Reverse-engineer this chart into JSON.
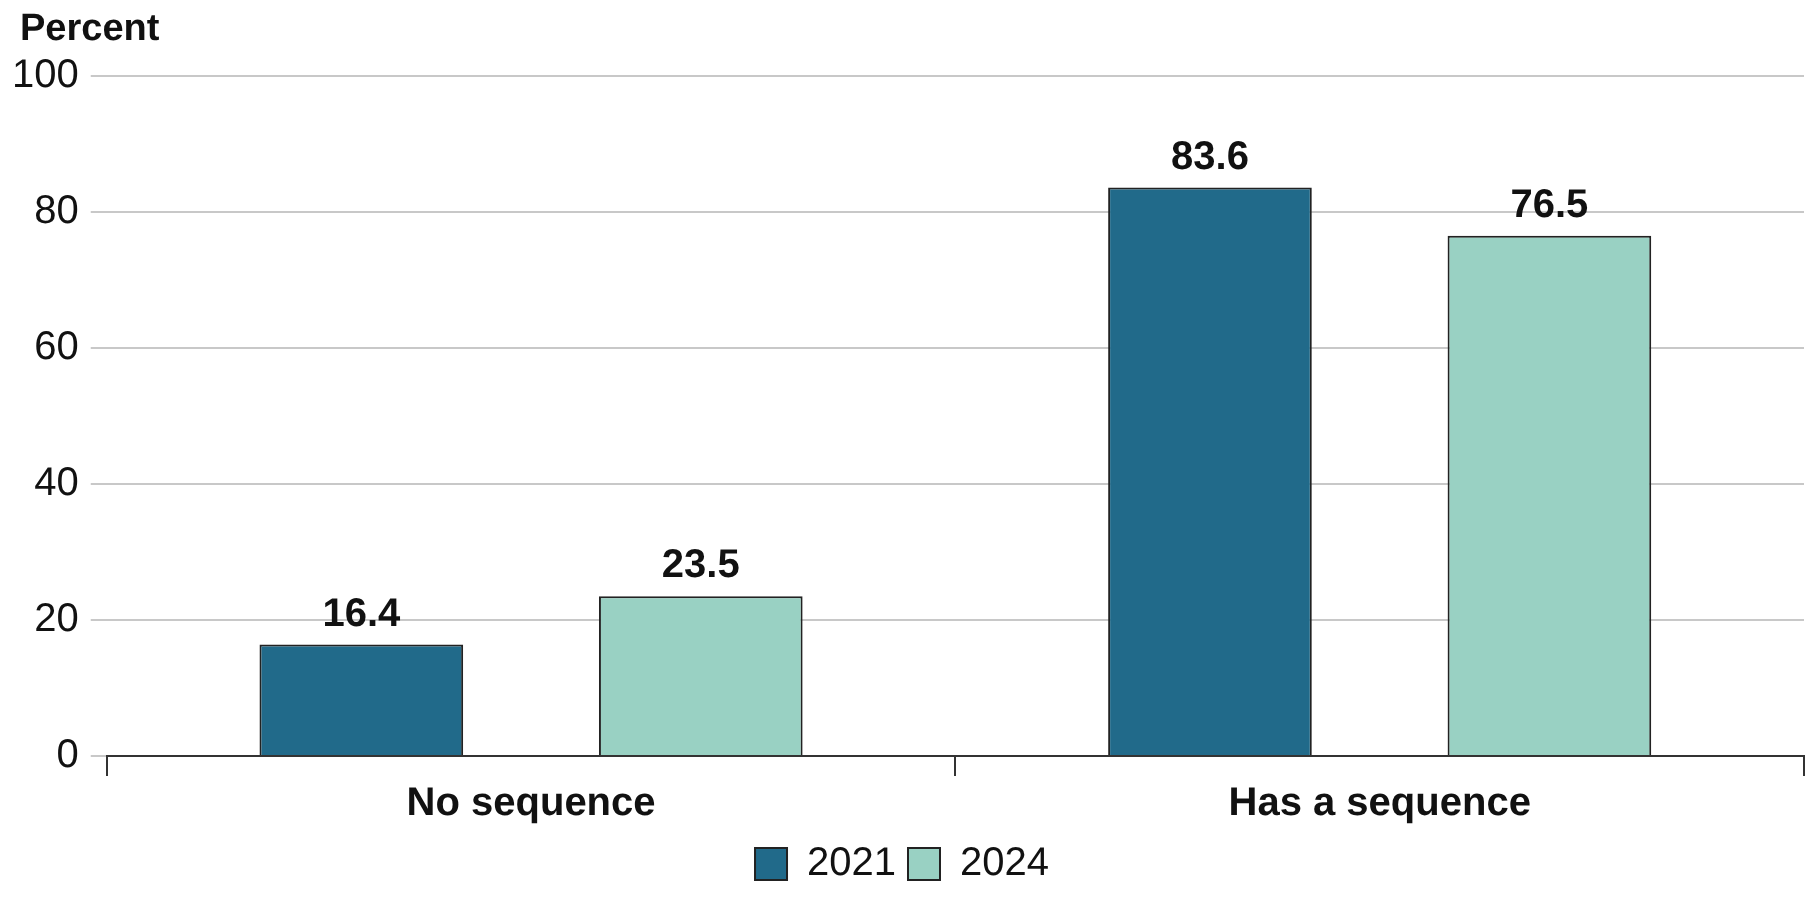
{
  "chart_data": {
    "type": "bar",
    "ylabel": "Percent",
    "categories": [
      "No sequence",
      "Has a sequence"
    ],
    "series": [
      {
        "name": "2021",
        "color": "#216a8a",
        "values": [
          16.4,
          83.6
        ]
      },
      {
        "name": "2024",
        "color": "#99d1c3",
        "values": [
          23.5,
          76.5
        ]
      }
    ],
    "ylim": [
      0,
      100
    ],
    "yticks": [
      0,
      20,
      40,
      60,
      80,
      100
    ],
    "grid": "y",
    "legend": "bottom",
    "data_labels": true
  }
}
